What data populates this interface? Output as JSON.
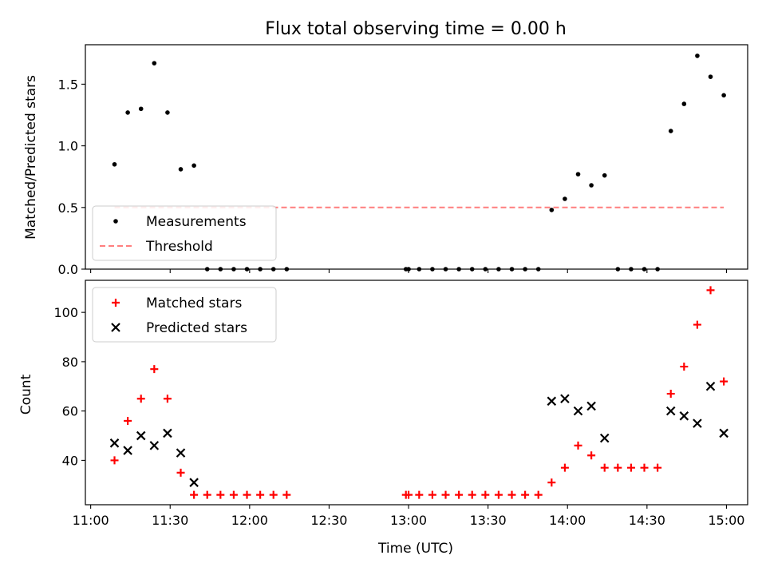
{
  "chart_data": [
    {
      "type": "scatter",
      "title": "Flux total observing time = 0.00 h",
      "ylabel": "Matched/Predicted stars",
      "xlabel": "",
      "xlim": [
        "10:58",
        "15:08"
      ],
      "ylim": [
        0,
        1.82
      ],
      "yticks": [
        0.0,
        0.5,
        1.0,
        1.5
      ],
      "ytick_labels": [
        "0.0",
        "0.5",
        "1.0",
        "1.5"
      ],
      "grid": false,
      "legend_position": "lower-left",
      "series": [
        {
          "name": "Measurements",
          "color": "#000000",
          "marker": "dot",
          "points": [
            [
              "11:09",
              0.85
            ],
            [
              "11:14",
              1.27
            ],
            [
              "11:19",
              1.3
            ],
            [
              "11:24",
              1.67
            ],
            [
              "11:29",
              1.27
            ],
            [
              "11:34",
              0.81
            ],
            [
              "11:39",
              0.84
            ],
            [
              "11:44",
              0.0
            ],
            [
              "11:49",
              0.0
            ],
            [
              "11:54",
              0.0
            ],
            [
              "11:59",
              0.0
            ],
            [
              "12:04",
              0.0
            ],
            [
              "12:09",
              0.0
            ],
            [
              "12:14",
              0.0
            ],
            [
              "12:59",
              0.0
            ],
            [
              "13:00",
              0.0
            ],
            [
              "13:04",
              0.0
            ],
            [
              "13:09",
              0.0
            ],
            [
              "13:14",
              0.0
            ],
            [
              "13:19",
              0.0
            ],
            [
              "13:24",
              0.0
            ],
            [
              "13:29",
              0.0
            ],
            [
              "13:34",
              0.0
            ],
            [
              "13:39",
              0.0
            ],
            [
              "13:44",
              0.0
            ],
            [
              "13:49",
              0.0
            ],
            [
              "13:54",
              0.48
            ],
            [
              "13:59",
              0.57
            ],
            [
              "14:04",
              0.77
            ],
            [
              "14:09",
              0.68
            ],
            [
              "14:14",
              0.76
            ],
            [
              "14:19",
              0.0
            ],
            [
              "14:24",
              0.0
            ],
            [
              "14:29",
              0.0
            ],
            [
              "14:34",
              0.0
            ],
            [
              "14:39",
              1.12
            ],
            [
              "14:44",
              1.34
            ],
            [
              "14:49",
              1.73
            ],
            [
              "14:54",
              1.56
            ],
            [
              "14:59",
              1.41
            ]
          ]
        },
        {
          "name": "Threshold",
          "color": "#ff7f7f",
          "style": "dashed",
          "points": [
            [
              "11:09",
              0.5
            ],
            [
              "14:59",
              0.5
            ]
          ]
        }
      ]
    },
    {
      "type": "scatter",
      "title": "",
      "ylabel": "Count",
      "xlabel": "Time (UTC)",
      "xlim": [
        "10:58",
        "15:08"
      ],
      "ylim": [
        22,
        113
      ],
      "xticks": [
        "11:00",
        "11:30",
        "12:00",
        "12:30",
        "13:00",
        "13:30",
        "14:00",
        "14:30",
        "15:00"
      ],
      "yticks": [
        40,
        60,
        80,
        100
      ],
      "ytick_labels": [
        "40",
        "60",
        "80",
        "100"
      ],
      "grid": false,
      "legend_position": "upper-left",
      "series": [
        {
          "name": "Matched stars",
          "color": "#ff0000",
          "marker": "plus",
          "points": [
            [
              "11:09",
              40
            ],
            [
              "11:14",
              56
            ],
            [
              "11:19",
              65
            ],
            [
              "11:24",
              77
            ],
            [
              "11:29",
              65
            ],
            [
              "11:34",
              35
            ],
            [
              "11:39",
              26
            ],
            [
              "11:44",
              26
            ],
            [
              "11:49",
              26
            ],
            [
              "11:54",
              26
            ],
            [
              "11:59",
              26
            ],
            [
              "12:04",
              26
            ],
            [
              "12:09",
              26
            ],
            [
              "12:14",
              26
            ],
            [
              "12:59",
              26
            ],
            [
              "13:00",
              26
            ],
            [
              "13:04",
              26
            ],
            [
              "13:09",
              26
            ],
            [
              "13:14",
              26
            ],
            [
              "13:19",
              26
            ],
            [
              "13:24",
              26
            ],
            [
              "13:29",
              26
            ],
            [
              "13:34",
              26
            ],
            [
              "13:39",
              26
            ],
            [
              "13:44",
              26
            ],
            [
              "13:49",
              26
            ],
            [
              "13:54",
              31
            ],
            [
              "13:59",
              37
            ],
            [
              "14:04",
              46
            ],
            [
              "14:09",
              42
            ],
            [
              "14:14",
              37
            ],
            [
              "14:19",
              37
            ],
            [
              "14:24",
              37
            ],
            [
              "14:29",
              37
            ],
            [
              "14:34",
              37
            ],
            [
              "14:39",
              67
            ],
            [
              "14:44",
              78
            ],
            [
              "14:49",
              95
            ],
            [
              "14:54",
              109
            ],
            [
              "14:59",
              72
            ]
          ]
        },
        {
          "name": "Predicted stars",
          "color": "#000000",
          "marker": "x",
          "points": [
            [
              "11:09",
              47
            ],
            [
              "11:14",
              44
            ],
            [
              "11:19",
              50
            ],
            [
              "11:24",
              46
            ],
            [
              "11:29",
              51
            ],
            [
              "11:34",
              43
            ],
            [
              "11:39",
              31
            ],
            [
              "13:54",
              64
            ],
            [
              "13:59",
              65
            ],
            [
              "14:04",
              60
            ],
            [
              "14:09",
              62
            ],
            [
              "14:14",
              49
            ],
            [
              "14:39",
              60
            ],
            [
              "14:44",
              58
            ],
            [
              "14:49",
              55
            ],
            [
              "14:54",
              70
            ],
            [
              "14:59",
              51
            ]
          ]
        }
      ]
    }
  ]
}
